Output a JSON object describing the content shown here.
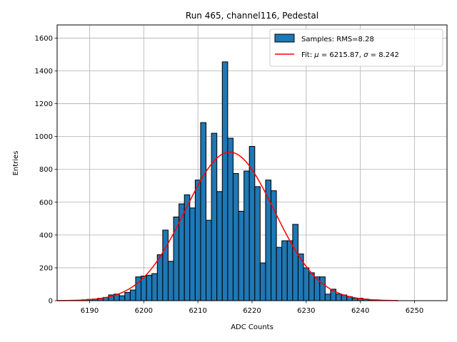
{
  "chart_data": {
    "type": "bar",
    "title": "Run 465, channel116, Pedestal",
    "xlabel": "ADC Counts",
    "ylabel": "Entries",
    "xlim": [
      6184,
      6256
    ],
    "ylim": [
      0,
      1680
    ],
    "xticks": [
      "6190",
      "6200",
      "6210",
      "6220",
      "6230",
      "6240",
      "6250"
    ],
    "yticks": [
      "0",
      "200",
      "400",
      "600",
      "800",
      "1000",
      "1200",
      "1400",
      "1600"
    ],
    "grid": true,
    "legend_placement": "top-right",
    "series": [
      {
        "name": "Samples: RMS=8.28",
        "kind": "histogram",
        "color": "#1f77b4",
        "edge_color": "#000000",
        "x": [
          6189,
          6190,
          6191,
          6192,
          6193,
          6194,
          6195,
          6196,
          6197,
          6198,
          6199,
          6200,
          6201,
          6202,
          6203,
          6204,
          6205,
          6206,
          6207,
          6208,
          6209,
          6210,
          6211,
          6212,
          6213,
          6214,
          6215,
          6216,
          6217,
          6218,
          6219,
          6220,
          6221,
          6222,
          6223,
          6224,
          6225,
          6226,
          6227,
          6228,
          6229,
          6230,
          6231,
          6232,
          6233,
          6234,
          6235,
          6236,
          6237,
          6238,
          6239,
          6240,
          6241,
          6242,
          6243
        ],
        "values": [
          5,
          8,
          10,
          15,
          20,
          35,
          40,
          30,
          50,
          65,
          145,
          150,
          155,
          165,
          280,
          430,
          240,
          510,
          590,
          645,
          565,
          735,
          1085,
          490,
          1020,
          665,
          1455,
          990,
          775,
          545,
          790,
          940,
          695,
          230,
          735,
          670,
          325,
          365,
          365,
          465,
          285,
          200,
          170,
          145,
          145,
          40,
          70,
          40,
          35,
          25,
          15,
          15,
          10,
          5,
          5
        ]
      },
      {
        "name": "Fit: $\\mu$ = 6215.87, $\\sigma$ = 8.242",
        "kind": "gaussian_fit",
        "color": "#ff0000",
        "mu": 6215.87,
        "sigma": 8.242,
        "amplitude": 905,
        "x_range": [
          6184,
          6247
        ]
      }
    ]
  }
}
